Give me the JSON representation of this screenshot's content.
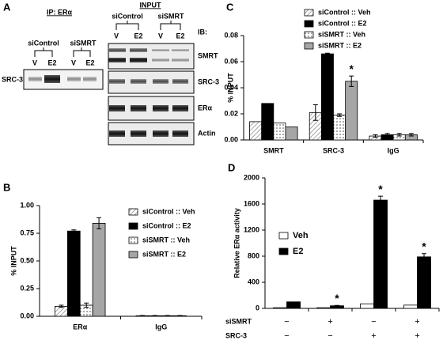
{
  "panel_a": {
    "label": "A",
    "ip": {
      "title": "IP: ERα",
      "groups": [
        "siControl",
        "siSMRT"
      ],
      "lanes": [
        "V",
        "E2",
        "V",
        "E2"
      ],
      "rows": [
        "SRC-3"
      ]
    },
    "input": {
      "title": "INPUT",
      "groups": [
        "siControl",
        "siSMRT"
      ],
      "lanes": [
        "V",
        "E2",
        "V",
        "E2"
      ],
      "ib": "IB:",
      "rows": [
        "SMRT",
        "SRC-3",
        "ERα",
        "Actin"
      ]
    }
  },
  "chart_data": [
    {
      "type": "bar",
      "panel": "B",
      "ylabel": "% INPUT",
      "categories": [
        "ERα",
        "IgG"
      ],
      "ylim": [
        0,
        1
      ],
      "yticks": [
        {
          "value": 0,
          "label": "0.00"
        },
        {
          "value": 0.25,
          "label": "0.25"
        },
        {
          "value": 0.5,
          "label": "0.50"
        },
        {
          "value": 0.75,
          "label": "0.75"
        },
        {
          "value": 1,
          "label": "1.00"
        }
      ],
      "legend": "upper right",
      "series": [
        {
          "name": "siControl :: Veh",
          "color": "#ffffff",
          "pattern": "hatch",
          "values": [
            0.09,
            0.005
          ],
          "errors": [
            0.01,
            0.002
          ]
        },
        {
          "name": "siControl :: E2",
          "color": "#000000",
          "values": [
            0.77,
            0.005
          ],
          "errors": [
            0.01,
            0.002
          ]
        },
        {
          "name": "siSMRT :: Veh",
          "color": "#ffffff",
          "pattern": "dots",
          "values": [
            0.1,
            0.005
          ],
          "errors": [
            0.02,
            0.002
          ]
        },
        {
          "name": "siSMRT :: E2",
          "color": "#a6a6a6",
          "values": [
            0.84,
            0.005
          ],
          "errors": [
            0.05,
            0.002
          ]
        }
      ]
    },
    {
      "type": "bar",
      "panel": "C",
      "ylabel": "% INPUT",
      "categories": [
        "SMRT",
        "SRC-3",
        "IgG"
      ],
      "ylim": [
        0,
        0.08
      ],
      "yticks": [
        {
          "value": 0,
          "label": "0.00"
        },
        0.02,
        0.04,
        0.06,
        {
          "value": 0.08,
          "label": "0.08"
        }
      ],
      "legend": "upper right",
      "series": [
        {
          "name": "siControl :: Veh",
          "color": "#ffffff",
          "pattern": "hatch",
          "values": [
            0.014,
            0.021,
            0.003
          ],
          "errors": [
            null,
            0.006,
            0.001
          ]
        },
        {
          "name": "siControl :: E2",
          "color": "#000000",
          "values": [
            0.028,
            0.066,
            0.004
          ],
          "errors": [
            null,
            0.0005,
            0.001
          ]
        },
        {
          "name": "siSMRT :: Veh",
          "color": "#ffffff",
          "pattern": "dots",
          "values": [
            0.013,
            0.019,
            0.004
          ],
          "errors": [
            null,
            0.001,
            0.001
          ]
        },
        {
          "name": "siSMRT :: E2",
          "color": "#a6a6a6",
          "values": [
            0.01,
            0.045,
            0.004
          ],
          "errors": [
            null,
            0.004,
            0.001
          ],
          "markers": [
            null,
            "*",
            null
          ]
        }
      ]
    },
    {
      "type": "bar",
      "panel": "D",
      "ylabel": "Relative ERα activity",
      "categories": [
        null,
        null,
        null,
        null
      ],
      "ylim": [
        0,
        2000
      ],
      "yticks": [
        0,
        400,
        800,
        1200,
        1600,
        2000
      ],
      "legend": "upper left",
      "conditions": [
        {
          "name": "siSMRT",
          "signs": [
            "−",
            "+",
            "−",
            "+"
          ]
        },
        {
          "name": "SRC-3",
          "signs": [
            "−",
            "−",
            "+",
            "+"
          ]
        }
      ],
      "series": [
        {
          "name": "Veh",
          "color": "#ffffff",
          "values": [
            10,
            10,
            70,
            50
          ],
          "errors": [
            null,
            null,
            null,
            null
          ]
        },
        {
          "name": "E2",
          "color": "#000000",
          "values": [
            100,
            40,
            1660,
            790
          ],
          "errors": [
            null,
            5,
            60,
            50
          ],
          "markers": [
            null,
            "*",
            "*",
            "*"
          ]
        }
      ]
    }
  ]
}
